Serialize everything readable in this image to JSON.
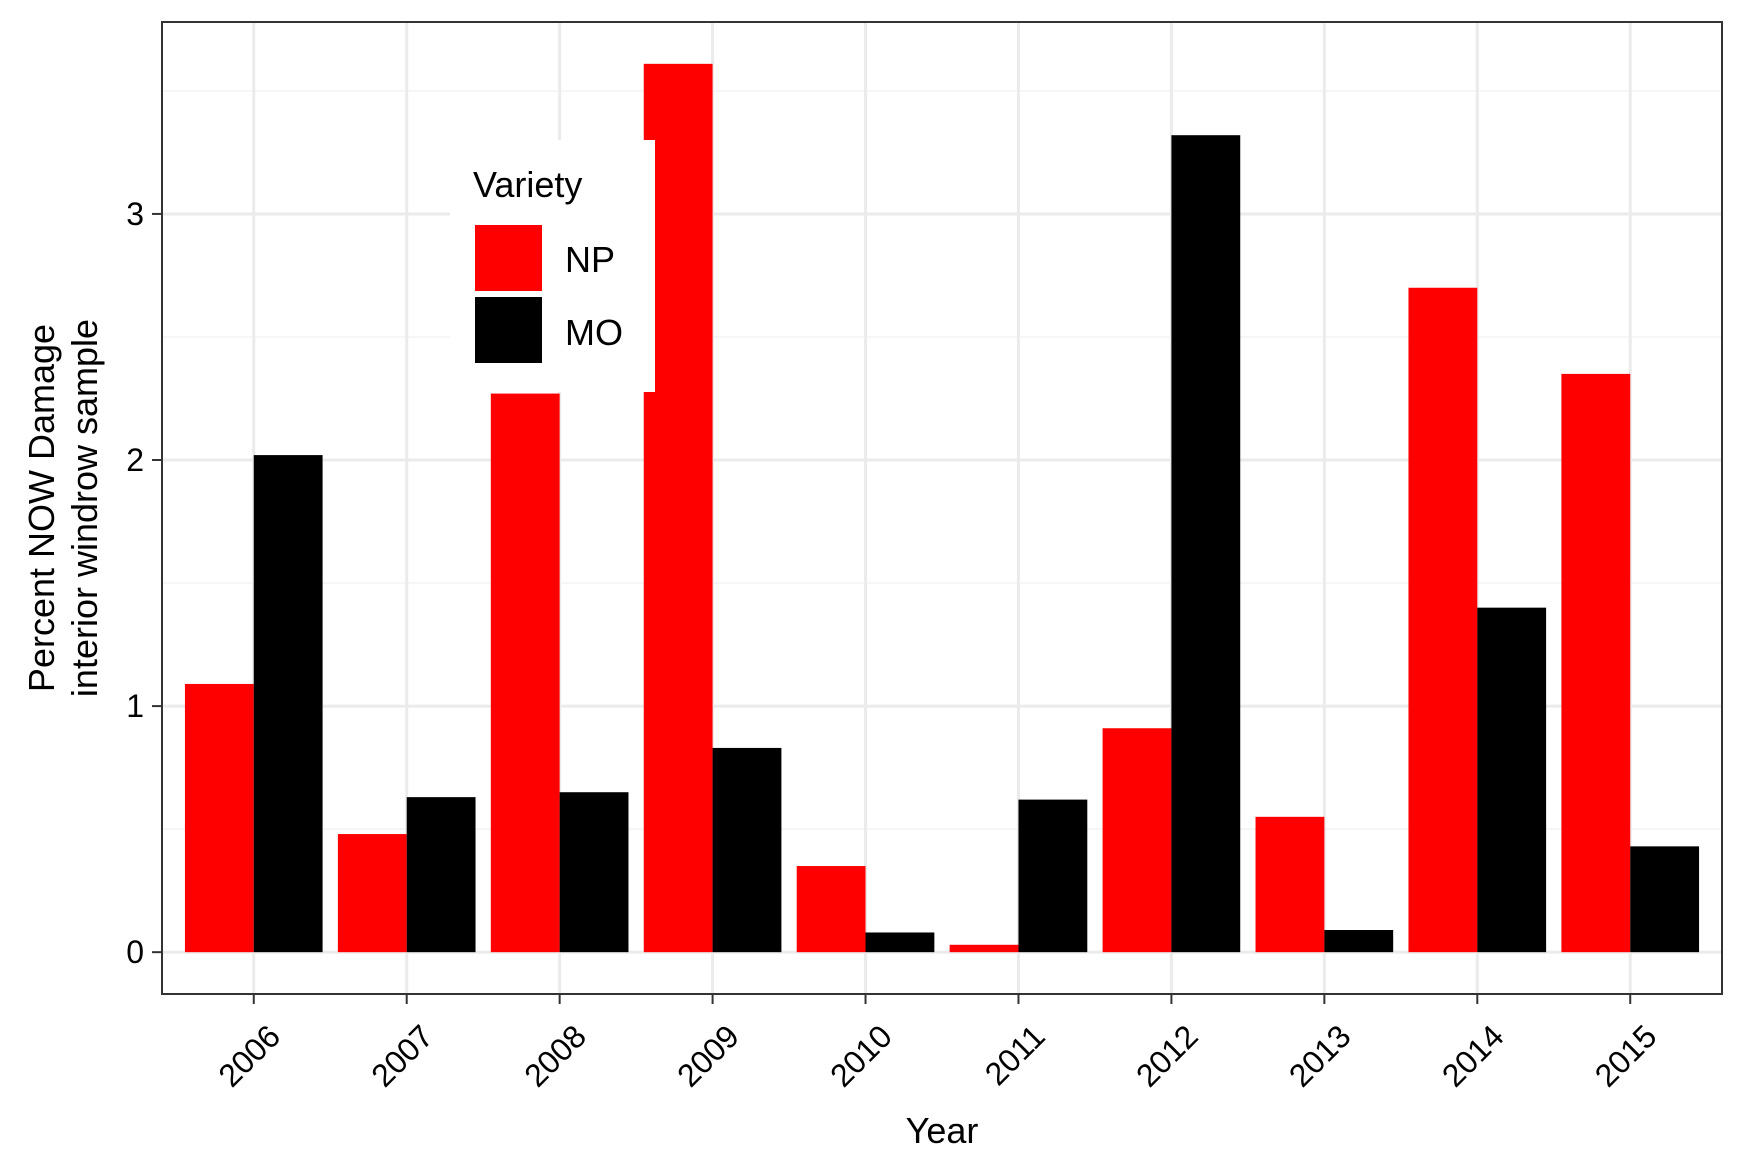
{
  "chart_data": {
    "type": "bar",
    "title": "",
    "xlabel": "Year",
    "ylabel_lines": [
      "Percent NOW Damage",
      "interior windrow sample"
    ],
    "categories": [
      "2006",
      "2007",
      "2008",
      "2009",
      "2010",
      "2011",
      "2012",
      "2013",
      "2014",
      "2015"
    ],
    "series": [
      {
        "name": "NP",
        "color": "#ff0000",
        "values": [
          1.09,
          0.48,
          2.27,
          3.61,
          0.35,
          0.03,
          0.91,
          0.55,
          2.7,
          2.35
        ]
      },
      {
        "name": "MO",
        "color": "#000000",
        "values": [
          2.02,
          0.63,
          0.65,
          0.83,
          0.08,
          0.62,
          3.32,
          0.09,
          1.4,
          0.43
        ]
      }
    ],
    "yticks": [
      0,
      1,
      2,
      3
    ],
    "ylim": [
      -0.17,
      3.78
    ],
    "grid": true,
    "legend": {
      "title": "Variety",
      "position": "top-left-inside"
    }
  }
}
